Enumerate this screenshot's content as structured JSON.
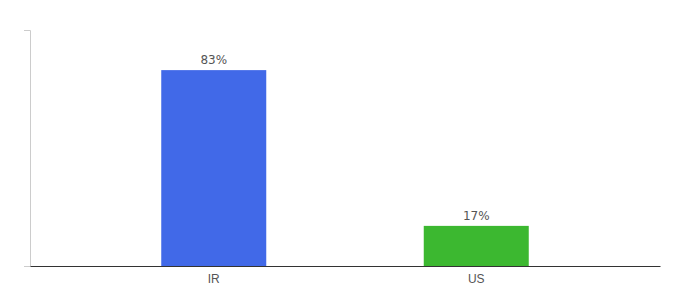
{
  "chart_data": {
    "type": "bar",
    "categories": [
      "IR",
      "US"
    ],
    "values": [
      83,
      17
    ],
    "value_labels": [
      "83%",
      "17%"
    ],
    "colors": [
      "#4169e8",
      "#3cb830"
    ],
    "ylim": [
      0,
      100
    ],
    "data_labels": true,
    "tick_labels": "x",
    "grid": false
  }
}
